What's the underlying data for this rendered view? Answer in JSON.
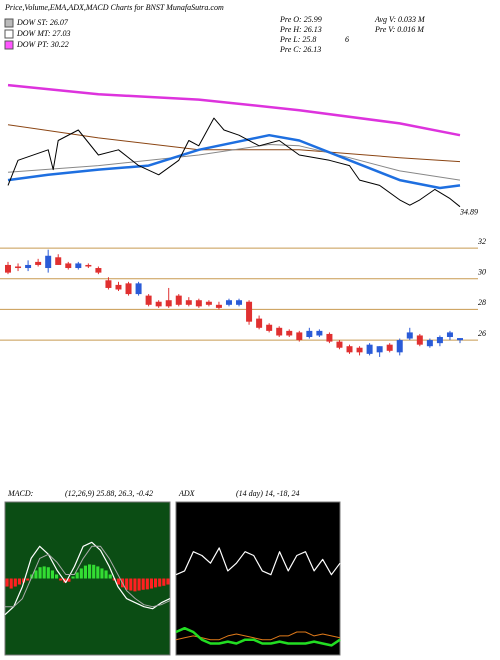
{
  "chart_data": [
    {
      "type": "line",
      "title": "Price,Volume,EMA,ADX,MACD Charts for BNST MunafaSutra.com",
      "legend": [
        {
          "label": "DOW ST: 26.07",
          "color": "#bbbbbb"
        },
        {
          "label": "DOW MT: 27.03",
          "color": "#ffffff"
        },
        {
          "label": "DOW PT: 30.22",
          "color": "#ff55ff"
        }
      ],
      "xlim": [
        0,
        45
      ],
      "ylim": [
        33.5,
        46
      ],
      "series": [
        {
          "color": "#dd33dd",
          "width": 2.5,
          "x": [
            0,
            9,
            19,
            29,
            39,
            45
          ],
          "values": [
            44.1,
            43.4,
            43.0,
            42.2,
            41.2,
            40.3
          ]
        },
        {
          "color": "#8b4513",
          "width": 1,
          "x": [
            0,
            9,
            19,
            29,
            39,
            45
          ],
          "values": [
            41.1,
            40.1,
            39.2,
            39.2,
            38.6,
            38.3
          ]
        },
        {
          "color": "#888888",
          "width": 1,
          "x": [
            0,
            9,
            19,
            26,
            29,
            34,
            39,
            45
          ],
          "values": [
            37.5,
            38.0,
            38.8,
            39.6,
            39.5,
            38.6,
            37.6,
            36.9
          ]
        },
        {
          "color": "#1e6fe0",
          "width": 2.5,
          "x": [
            0,
            4,
            9,
            14,
            19,
            26,
            29,
            34,
            39,
            43,
            45
          ],
          "values": [
            36.9,
            37.3,
            37.7,
            38.0,
            39.2,
            40.3,
            39.9,
            38.4,
            36.9,
            36.3,
            36.5
          ]
        },
        {
          "color": "#000000",
          "width": 1,
          "x": [
            0,
            1,
            4,
            4.5,
            5,
            7,
            9,
            11,
            13,
            15,
            17,
            18,
            19,
            20.5,
            21.5,
            23,
            25,
            27,
            29,
            32,
            34,
            35,
            37,
            39,
            40,
            41,
            42.5,
            44,
            45
          ],
          "values": [
            36.5,
            38.4,
            39.2,
            37.7,
            39.9,
            40.7,
            38.8,
            39.2,
            38.0,
            37.3,
            38.4,
            39.9,
            39.5,
            41.6,
            40.7,
            40.3,
            39.5,
            39.9,
            38.8,
            38.4,
            38.0,
            36.9,
            36.5,
            35.4,
            35.0,
            35.4,
            36.2,
            35.5,
            34.89
          ]
        }
      ]
    },
    {
      "type": "candlestick",
      "annotations": [
        "Pre O: 25.99",
        "Pre H: 26.13",
        "Pre L: 25.8",
        "Pre C: 26.13",
        "Avg V: 0.033 M",
        "Pre V: 0.016 M",
        "6"
      ],
      "ylim": [
        24.7,
        33.05
      ],
      "yticks": [
        32,
        30,
        28,
        26
      ],
      "grid": true,
      "grid_color": "#c89a50",
      "up_color": "#2a5bd7",
      "down_color": "#e03030",
      "open": [
        30.9,
        30.8,
        30.7,
        31.1,
        30.7,
        31.4,
        31.0,
        30.7,
        30.9,
        30.7,
        29.9,
        29.6,
        29.7,
        29.0,
        28.9,
        28.5,
        28.6,
        28.9,
        28.6,
        28.6,
        28.5,
        28.3,
        28.3,
        28.3,
        28.5,
        27.4,
        27.0,
        26.8,
        26.6,
        26.5,
        26.2,
        26.3,
        26.4,
        25.9,
        25.6,
        25.5,
        25.1,
        25.2,
        25.7,
        25.2,
        26.1,
        26.3,
        25.6,
        25.8,
        26.2,
        25.99
      ],
      "high": [
        31.1,
        31.0,
        31.2,
        31.3,
        31.9,
        31.6,
        31.1,
        31.1,
        31.0,
        30.8,
        30.1,
        29.8,
        29.8,
        29.8,
        29.0,
        28.6,
        29.4,
        29.0,
        28.8,
        28.7,
        28.6,
        28.5,
        28.7,
        28.7,
        28.6,
        27.6,
        27.1,
        26.9,
        26.7,
        26.6,
        26.8,
        26.7,
        26.5,
        26.0,
        25.7,
        25.6,
        25.8,
        25.6,
        25.8,
        26.1,
        26.8,
        26.4,
        26.1,
        26.3,
        26.6,
        26.13
      ],
      "low": [
        30.3,
        30.5,
        30.5,
        30.8,
        30.4,
        30.9,
        30.6,
        30.6,
        30.7,
        30.3,
        29.3,
        29.2,
        28.9,
        28.9,
        28.2,
        28.1,
        28.1,
        28.2,
        28.2,
        28.1,
        28.2,
        28.0,
        28.2,
        28.2,
        27.0,
        26.7,
        26.5,
        26.2,
        26.2,
        25.9,
        26.1,
        26.2,
        25.8,
        25.4,
        25.1,
        25.0,
        25.0,
        24.9,
        25.2,
        25.0,
        26.0,
        25.6,
        25.5,
        25.6,
        26.0,
        25.8
      ],
      "close": [
        30.4,
        30.7,
        30.9,
        30.9,
        31.5,
        30.9,
        30.7,
        31.0,
        30.8,
        30.4,
        29.4,
        29.3,
        29.0,
        29.7,
        28.3,
        28.2,
        28.2,
        28.3,
        28.3,
        28.2,
        28.3,
        28.1,
        28.6,
        28.6,
        27.2,
        26.8,
        26.6,
        26.3,
        26.3,
        26.0,
        26.6,
        26.6,
        25.9,
        25.5,
        25.2,
        25.2,
        25.7,
        25.6,
        25.3,
        26.0,
        26.5,
        25.7,
        26.0,
        26.2,
        26.5,
        26.13
      ]
    },
    {
      "type": "macd",
      "title": "MACD:",
      "subtitle": "(12,26,9) 25.88, 26.3, -0.42",
      "background": "#0b4d14",
      "ylim": [
        -1.9,
        1.9
      ],
      "pos_color": "#33dd33",
      "neg_color": "#ff2020",
      "histogram": [
        -0.2,
        -0.25,
        -0.2,
        -0.15,
        -0.1,
        -0.05,
        0.1,
        0.2,
        0.28,
        0.3,
        0.28,
        0.2,
        0.1,
        -0.05,
        -0.1,
        -0.08,
        0.05,
        0.15,
        0.25,
        0.32,
        0.35,
        0.34,
        0.3,
        0.25,
        0.2,
        0.1,
        -0.05,
        -0.15,
        -0.22,
        -0.28,
        -0.3,
        -0.32,
        -0.3,
        -0.28,
        -0.27,
        -0.25,
        -0.22,
        -0.2,
        -0.18,
        -0.15
      ],
      "series": [
        {
          "color": "#ffffff",
          "width": 1.2,
          "values": [
            -0.9,
            -0.7,
            -0.2,
            0.5,
            0.8,
            0.6,
            0.2,
            -0.1,
            0.3,
            0.8,
            0.9,
            0.7,
            0.3,
            -0.2,
            -0.5,
            -0.6,
            -0.7,
            -0.75,
            -0.6,
            -0.5
          ]
        },
        {
          "color": "#aaaaaa",
          "width": 1,
          "values": [
            -0.7,
            -0.7,
            -0.5,
            0.0,
            0.5,
            0.6,
            0.4,
            0.1,
            0.1,
            0.5,
            0.8,
            0.8,
            0.5,
            0.1,
            -0.3,
            -0.5,
            -0.65,
            -0.7,
            -0.65,
            -0.55
          ]
        }
      ]
    },
    {
      "type": "line",
      "title": "ADX",
      "subtitle": "(14 day) 14, -18, 24",
      "background": "#000000",
      "ylim": [
        0,
        40
      ],
      "series": [
        {
          "color": "#ffffff",
          "width": 1.2,
          "values": [
            21,
            22,
            27,
            26,
            24,
            28,
            22,
            24,
            27,
            26,
            22,
            21,
            27,
            22,
            26,
            27,
            22,
            25,
            21,
            24
          ]
        },
        {
          "color": "#e07a1a",
          "width": 1,
          "values": [
            4,
            4.5,
            5,
            4.5,
            4,
            4,
            5,
            5.5,
            5,
            4.5,
            4,
            4,
            5,
            5,
            6,
            6,
            5,
            5.5,
            5,
            4.5
          ]
        },
        {
          "color": "#22dd22",
          "width": 2.5,
          "values": [
            6,
            7,
            6,
            4,
            3,
            3,
            3.5,
            3,
            4,
            4,
            3,
            3,
            3.5,
            3,
            3,
            3,
            3.5,
            3,
            2.5,
            4
          ]
        }
      ]
    }
  ]
}
